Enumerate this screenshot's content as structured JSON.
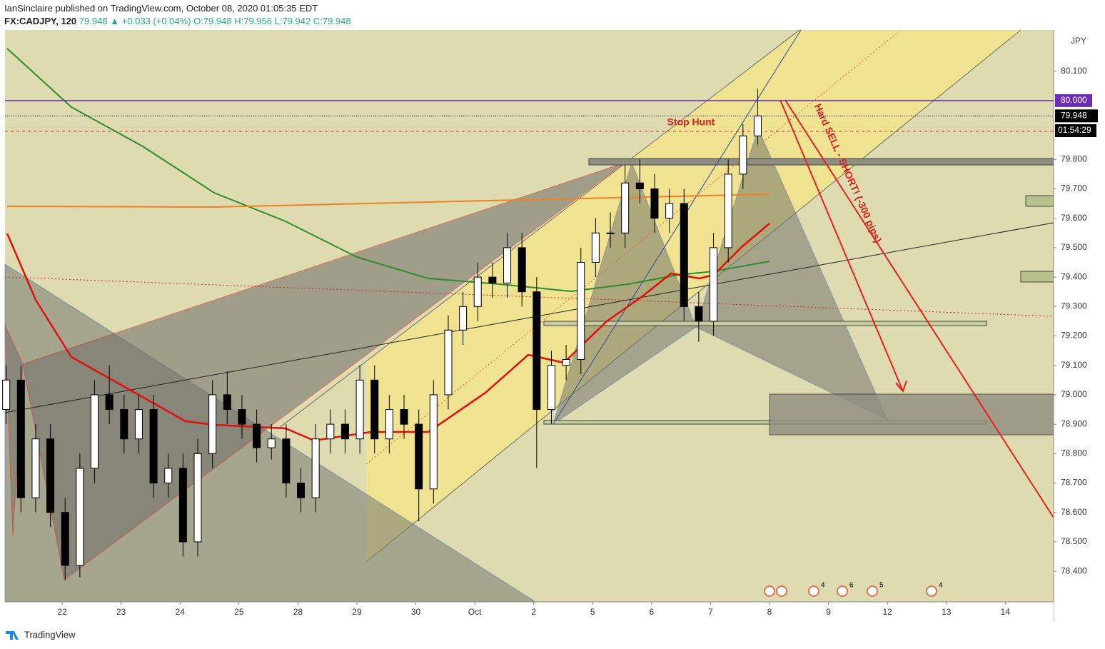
{
  "header": {
    "publisher": "IanSinclaire published on TradingView.com, October 08, 2020 01:05:35 EDT",
    "symbol": "FX:CADJPY, 120",
    "last": "79.948",
    "change": "▲ +0.033 (+0.04%)",
    "ohlc": "O:79.948 H:79.956 L:79.942 C:79.948"
  },
  "footer": "TradingView",
  "chart_data": {
    "type": "candlestick",
    "currency": "JPY",
    "annotations": [
      "Stop Hunt",
      "Hard SELL - SHORT! (-300 pips)"
    ],
    "countdown": "01:54:29",
    "events": [
      "4",
      "6",
      "5",
      "4"
    ],
    "hline": {
      "value": 80,
      "label": "80.000"
    },
    "last_price": {
      "value": 79.948,
      "label": "79.948"
    },
    "xlim": [
      -0.97,
      16.82
    ],
    "xticks": [
      {
        "value": 0,
        "label": "22"
      },
      {
        "value": 1,
        "label": "23"
      },
      {
        "value": 2,
        "label": "24"
      },
      {
        "value": 3,
        "label": "25"
      },
      {
        "value": 4,
        "label": "28"
      },
      {
        "value": 5,
        "label": "29"
      },
      {
        "value": 6,
        "label": "30"
      },
      {
        "value": 7,
        "label": "Oct"
      },
      {
        "value": 8,
        "label": "2"
      },
      {
        "value": 9,
        "label": "5"
      },
      {
        "value": 10,
        "label": "6"
      },
      {
        "value": 11,
        "label": "7"
      },
      {
        "value": 12,
        "label": "8"
      },
      {
        "value": 13,
        "label": "9"
      },
      {
        "value": 14,
        "label": "12"
      },
      {
        "value": 15,
        "label": "13"
      },
      {
        "value": 16,
        "label": "14"
      }
    ],
    "ylim": [
      78.296,
      80.24
    ],
    "yticks": [
      {
        "value": 78.4,
        "label": "78.400"
      },
      {
        "value": 78.5,
        "label": "78.500"
      },
      {
        "value": 78.6,
        "label": "78.600"
      },
      {
        "value": 78.7,
        "label": "78.700"
      },
      {
        "value": 78.8,
        "label": "78.800"
      },
      {
        "value": 78.9,
        "label": "78.900"
      },
      {
        "value": 79,
        "label": "79.000"
      },
      {
        "value": 79.1,
        "label": "79.100"
      },
      {
        "value": 79.2,
        "label": "79.200"
      },
      {
        "value": 79.3,
        "label": "79.300"
      },
      {
        "value": 79.4,
        "label": "79.400"
      },
      {
        "value": 79.5,
        "label": "79.500"
      },
      {
        "value": 79.6,
        "label": "79.600"
      },
      {
        "value": 79.7,
        "label": "79.700"
      },
      {
        "value": 79.8,
        "label": "79.800"
      },
      {
        "value": 80.1,
        "label": "80.100"
      }
    ],
    "up_color": "#ffffff",
    "down_color": "#000000",
    "x": [
      -0.95,
      -0.7,
      -0.45,
      -0.2,
      0.05,
      0.3,
      0.55,
      0.8,
      1.05,
      1.3,
      1.55,
      1.8,
      2.05,
      2.3,
      2.55,
      2.8,
      3.05,
      3.3,
      3.55,
      3.8,
      4.05,
      4.3,
      4.55,
      4.8,
      5.05,
      5.3,
      5.55,
      5.8,
      6.05,
      6.3,
      6.55,
      6.8,
      7.05,
      7.3,
      7.55,
      7.8,
      8.05,
      8.3,
      8.55,
      8.8,
      9.05,
      9.3,
      9.55,
      9.8,
      10.05,
      10.3,
      10.55,
      10.8,
      11.05,
      11.3,
      11.55,
      11.8
    ],
    "open": [
      78.95,
      79.05,
      78.65,
      78.85,
      78.6,
      78.42,
      78.75,
      79.0,
      78.95,
      78.85,
      78.95,
      78.7,
      78.75,
      78.5,
      78.8,
      79.0,
      78.95,
      78.9,
      78.82,
      78.85,
      78.7,
      78.65,
      78.85,
      78.9,
      78.85,
      79.05,
      78.85,
      78.95,
      78.9,
      78.68,
      79.0,
      79.22,
      79.3,
      79.4,
      79.38,
      79.5,
      79.35,
      78.95,
      79.1,
      79.12,
      79.45,
      79.55,
      79.55,
      79.72,
      79.7,
      79.6,
      79.65,
      79.3,
      79.25,
      79.5,
      79.75,
      79.88
    ],
    "high": [
      79.1,
      79.1,
      78.9,
      78.9,
      78.65,
      78.8,
      79.05,
      79.1,
      79.0,
      79.0,
      79.0,
      78.8,
      78.8,
      78.85,
      79.05,
      79.08,
      79.0,
      78.95,
      78.9,
      78.9,
      78.75,
      78.9,
      78.95,
      78.95,
      79.1,
      79.1,
      79.0,
      79.0,
      78.95,
      79.05,
      79.27,
      79.35,
      79.45,
      79.45,
      79.55,
      79.55,
      79.4,
      79.15,
      79.17,
      79.5,
      79.6,
      79.62,
      79.78,
      79.8,
      79.75,
      79.7,
      79.7,
      79.35,
      79.55,
      79.8,
      79.92,
      80.04
    ],
    "low": [
      78.9,
      78.6,
      78.6,
      78.55,
      78.37,
      78.38,
      78.7,
      78.9,
      78.8,
      78.8,
      78.65,
      78.65,
      78.45,
      78.45,
      78.75,
      78.9,
      78.85,
      78.77,
      78.78,
      78.65,
      78.6,
      78.6,
      78.8,
      78.8,
      78.8,
      78.8,
      78.8,
      78.85,
      78.57,
      78.63,
      78.95,
      79.17,
      79.25,
      79.33,
      79.33,
      79.3,
      78.75,
      78.9,
      79.05,
      79.07,
      79.4,
      79.5,
      79.5,
      79.65,
      79.55,
      79.55,
      79.25,
      79.18,
      79.2,
      79.45,
      79.7,
      79.85
    ],
    "close": [
      79.05,
      78.65,
      78.85,
      78.6,
      78.42,
      78.75,
      79.0,
      78.95,
      78.85,
      78.95,
      78.7,
      78.75,
      78.5,
      78.8,
      79.0,
      78.95,
      78.9,
      78.82,
      78.85,
      78.7,
      78.65,
      78.85,
      78.9,
      78.85,
      79.05,
      78.85,
      78.95,
      78.9,
      78.68,
      79.0,
      79.22,
      79.3,
      79.4,
      79.38,
      79.5,
      79.35,
      78.95,
      79.1,
      79.12,
      79.45,
      79.55,
      79.55,
      79.72,
      79.7,
      79.6,
      79.65,
      79.3,
      79.25,
      79.5,
      79.75,
      79.88,
      79.948
    ]
  }
}
